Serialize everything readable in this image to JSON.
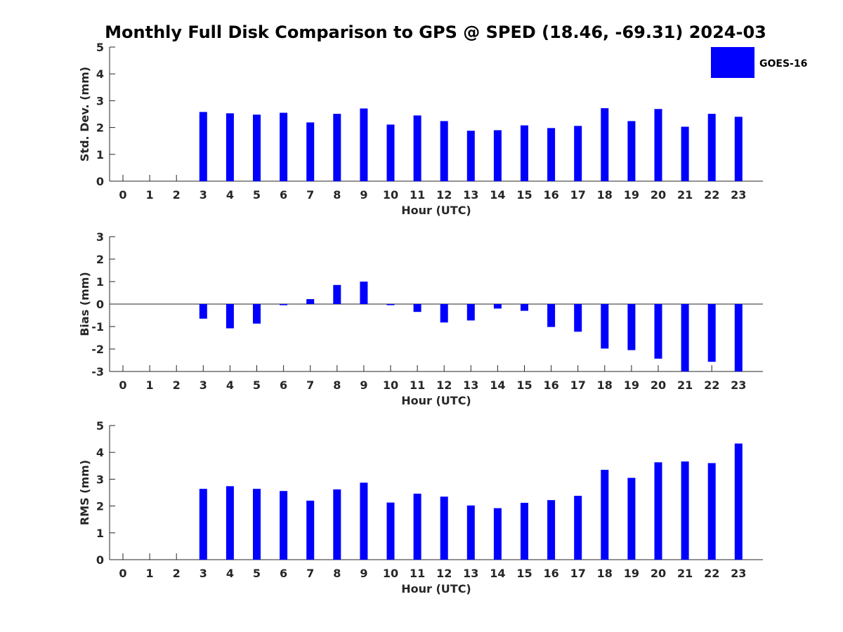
{
  "title": "Monthly Full Disk Comparison to GPS @ SPED (18.46, -69.31) 2024-03",
  "legend": {
    "label": "GOES-16",
    "color": "#0000ff",
    "placement": "top-right"
  },
  "chart_data": [
    {
      "type": "bar",
      "ylabel": "Std. Dev. (mm)",
      "xlabel": "Hour (UTC)",
      "ylim": [
        0,
        5
      ],
      "yticks": [
        0,
        1,
        2,
        3,
        4,
        5
      ],
      "categories": [
        "0",
        "1",
        "2",
        "3",
        "4",
        "5",
        "6",
        "7",
        "8",
        "9",
        "10",
        "11",
        "12",
        "13",
        "14",
        "15",
        "16",
        "17",
        "18",
        "19",
        "20",
        "21",
        "22",
        "23"
      ],
      "series": [
        {
          "name": "GOES-16",
          "color": "#0000ff",
          "values": [
            null,
            null,
            null,
            2.58,
            2.53,
            2.48,
            2.55,
            2.19,
            2.51,
            2.71,
            2.11,
            2.45,
            2.24,
            1.88,
            1.9,
            2.08,
            1.98,
            2.06,
            2.72,
            2.24,
            2.69,
            2.03,
            2.51,
            2.4
          ]
        }
      ]
    },
    {
      "type": "bar",
      "ylabel": "Bias (mm)",
      "xlabel": "Hour (UTC)",
      "ylim": [
        -3,
        3
      ],
      "yticks": [
        -3,
        -2,
        -1,
        0,
        1,
        2,
        3
      ],
      "zero_line": true,
      "categories": [
        "0",
        "1",
        "2",
        "3",
        "4",
        "5",
        "6",
        "7",
        "8",
        "9",
        "10",
        "11",
        "12",
        "13",
        "14",
        "15",
        "16",
        "17",
        "18",
        "19",
        "20",
        "21",
        "22",
        "23"
      ],
      "series": [
        {
          "name": "GOES-16",
          "color": "#0000ff",
          "values": [
            null,
            null,
            null,
            -0.65,
            -1.08,
            -0.87,
            -0.05,
            0.22,
            0.85,
            1.0,
            -0.05,
            -0.35,
            -0.82,
            -0.73,
            -0.2,
            -0.3,
            -1.02,
            -1.23,
            -1.98,
            -2.05,
            -2.43,
            -3.2,
            -2.57,
            -3.2
          ]
        }
      ]
    },
    {
      "type": "bar",
      "ylabel": "RMS (mm)",
      "xlabel": "Hour (UTC)",
      "ylim": [
        0,
        5
      ],
      "yticks": [
        0,
        1,
        2,
        3,
        4,
        5
      ],
      "categories": [
        "0",
        "1",
        "2",
        "3",
        "4",
        "5",
        "6",
        "7",
        "8",
        "9",
        "10",
        "11",
        "12",
        "13",
        "14",
        "15",
        "16",
        "17",
        "18",
        "19",
        "20",
        "21",
        "22",
        "23"
      ],
      "series": [
        {
          "name": "GOES-16",
          "color": "#0000ff",
          "values": [
            null,
            null,
            null,
            2.64,
            2.74,
            2.64,
            2.56,
            2.2,
            2.62,
            2.87,
            2.13,
            2.46,
            2.35,
            2.02,
            1.92,
            2.12,
            2.22,
            2.38,
            3.35,
            3.05,
            3.63,
            3.66,
            3.6,
            4.33
          ]
        }
      ]
    }
  ]
}
